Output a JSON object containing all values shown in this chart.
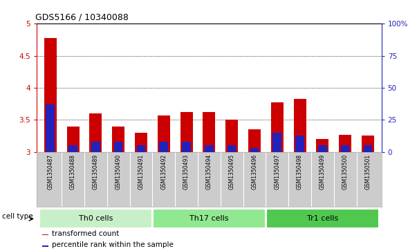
{
  "title": "GDS5166 / 10340088",
  "samples": [
    "GSM1350487",
    "GSM1350488",
    "GSM1350489",
    "GSM1350490",
    "GSM1350491",
    "GSM1350492",
    "GSM1350493",
    "GSM1350494",
    "GSM1350495",
    "GSM1350496",
    "GSM1350497",
    "GSM1350498",
    "GSM1350499",
    "GSM1350500",
    "GSM1350501"
  ],
  "red_values": [
    4.78,
    3.4,
    3.6,
    3.4,
    3.3,
    3.57,
    3.62,
    3.62,
    3.5,
    3.35,
    3.77,
    3.83,
    3.2,
    3.27,
    3.25
  ],
  "blue_values_pct": [
    37,
    5,
    8,
    8,
    5,
    8,
    8,
    5,
    5,
    3,
    15,
    13,
    5,
    5,
    5
  ],
  "ylim_left": [
    3.0,
    5.0
  ],
  "ylim_right": [
    0,
    100
  ],
  "yticks_left": [
    3.0,
    3.5,
    4.0,
    4.5,
    5.0
  ],
  "ytick_labels_left": [
    "3",
    "3.5",
    "4",
    "4.5",
    "5"
  ],
  "yticks_right": [
    0,
    25,
    50,
    75,
    100
  ],
  "ytick_labels_right": [
    "0",
    "25",
    "50",
    "75",
    "100%"
  ],
  "groups": [
    {
      "label": "Th0 cells",
      "indices": [
        0,
        1,
        2,
        3,
        4
      ],
      "color": "#c8f0c8"
    },
    {
      "label": "Th17 cells",
      "indices": [
        5,
        6,
        7,
        8,
        9
      ],
      "color": "#90e890"
    },
    {
      "label": "Tr1 cells",
      "indices": [
        10,
        11,
        12,
        13,
        14
      ],
      "color": "#50c850"
    }
  ],
  "cell_type_label": "cell type",
  "legend_items": [
    {
      "label": "transformed count",
      "color": "#cc0000"
    },
    {
      "label": "percentile rank within the sample",
      "color": "#2222bb"
    }
  ],
  "bar_color_red": "#cc0000",
  "bar_color_blue": "#2222bb",
  "bg_color": "#cccccc",
  "plot_bg": "#ffffff",
  "left_axis_color": "#cc0000",
  "right_axis_color": "#2222bb"
}
